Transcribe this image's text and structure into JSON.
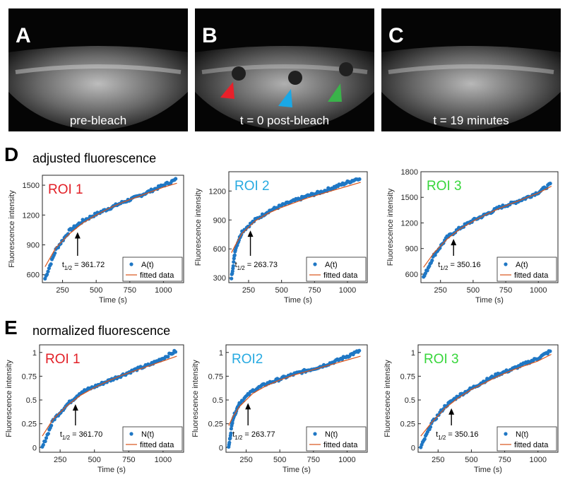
{
  "photo_panels": [
    {
      "letter": "A",
      "caption": "pre-bleach"
    },
    {
      "letter": "B",
      "caption": "t = 0 post-bleach"
    },
    {
      "letter": "C",
      "caption": "t = 19 minutes"
    }
  ],
  "sections": [
    {
      "letter": "D",
      "title": "adjusted fluorescence"
    },
    {
      "letter": "E",
      "title": "normalized fluorescence"
    }
  ],
  "arrowhead_colors": {
    "roi1": "#e8202a",
    "roi2": "#1aa8e6",
    "roi3": "#3ab34a"
  },
  "chart_data": [
    {
      "type": "scatter",
      "roi_label": "ROI 1",
      "roi_color": "#e21f26",
      "xlabel": "Time (s)",
      "ylabel": "Fluorescence intensity",
      "xlim": [
        100,
        1150
      ],
      "ylim": [
        520,
        1600
      ],
      "xticks": [
        250,
        500,
        750,
        1000
      ],
      "yticks": [
        600,
        900,
        1200,
        1500
      ],
      "legend": [
        "A(t)",
        "fitted data"
      ],
      "t_half_label": "361.72",
      "t_half": 361.72,
      "data_color": "#1f77c4",
      "fit_color": "#d95319",
      "series": [
        {
          "name": "A(t)",
          "x": [
            120,
            200,
            300,
            400,
            500,
            600,
            700,
            800,
            900,
            1000,
            1100
          ],
          "y": [
            560,
            850,
            1040,
            1140,
            1210,
            1270,
            1330,
            1380,
            1440,
            1500,
            1560
          ]
        },
        {
          "name": "fitted data",
          "x": [
            120,
            200,
            300,
            400,
            500,
            600,
            700,
            800,
            900,
            1000,
            1100
          ],
          "y": [
            680,
            870,
            1010,
            1120,
            1200,
            1270,
            1330,
            1380,
            1430,
            1480,
            1520
          ]
        }
      ]
    },
    {
      "type": "scatter",
      "roi_label": "ROI 2",
      "roi_color": "#27aae1",
      "xlabel": "Time (s)",
      "ylabel": "Fluorescence intensity",
      "xlim": [
        100,
        1150
      ],
      "ylim": [
        250,
        1400
      ],
      "xticks": [
        250,
        500,
        750,
        1000
      ],
      "yticks": [
        300,
        600,
        900,
        1200
      ],
      "legend": [
        "A(t)",
        "fitted data"
      ],
      "t_half_label": "263.73",
      "t_half": 263.73,
      "data_color": "#1f77c4",
      "fit_color": "#d95319",
      "series": [
        {
          "name": "A(t)",
          "x": [
            120,
            150,
            200,
            300,
            400,
            500,
            600,
            700,
            800,
            900,
            1000,
            1100
          ],
          "y": [
            300,
            600,
            780,
            900,
            990,
            1050,
            1100,
            1150,
            1190,
            1240,
            1290,
            1340
          ]
        },
        {
          "name": "fitted data",
          "x": [
            120,
            150,
            200,
            300,
            400,
            500,
            600,
            700,
            800,
            900,
            1000,
            1100
          ],
          "y": [
            560,
            640,
            760,
            890,
            970,
            1030,
            1080,
            1130,
            1170,
            1210,
            1250,
            1290
          ]
        }
      ]
    },
    {
      "type": "scatter",
      "roi_label": "ROI 3",
      "roi_color": "#37d63b",
      "xlabel": "Time (s)",
      "ylabel": "Fluorescence intensity",
      "xlim": [
        100,
        1150
      ],
      "ylim": [
        500,
        1800
      ],
      "xticks": [
        250,
        500,
        750,
        1000
      ],
      "yticks": [
        600,
        900,
        1200,
        1500,
        1800
      ],
      "legend": [
        "A(t)",
        "fitted data"
      ],
      "t_half_label": "350.16",
      "t_half": 350.16,
      "data_color": "#1f77c4",
      "fit_color": "#d95319",
      "series": [
        {
          "name": "A(t)",
          "x": [
            120,
            200,
            300,
            400,
            500,
            600,
            700,
            800,
            900,
            1000,
            1100
          ],
          "y": [
            560,
            820,
            1030,
            1140,
            1230,
            1300,
            1380,
            1430,
            1490,
            1560,
            1660
          ]
        },
        {
          "name": "fitted data",
          "x": [
            120,
            200,
            300,
            400,
            500,
            600,
            700,
            800,
            900,
            1000,
            1100
          ],
          "y": [
            680,
            850,
            1010,
            1130,
            1220,
            1300,
            1370,
            1430,
            1490,
            1550,
            1630
          ]
        }
      ]
    },
    {
      "type": "scatter",
      "roi_label": "ROI 1",
      "roi_color": "#e21f26",
      "xlabel": "Time (s)",
      "ylabel": "Fluorescence intensity",
      "xlim": [
        100,
        1150
      ],
      "ylim": [
        -0.05,
        1.08
      ],
      "xticks": [
        250,
        500,
        750,
        1000
      ],
      "yticks": [
        0,
        0.25,
        0.5,
        0.75,
        1
      ],
      "legend": [
        "N(t)",
        "fitted data"
      ],
      "t_half_label": "361.70",
      "t_half": 361.7,
      "data_color": "#1f77c4",
      "fit_color": "#d95319",
      "series": [
        {
          "name": "N(t)",
          "x": [
            120,
            200,
            300,
            400,
            500,
            600,
            700,
            800,
            900,
            1000,
            1100
          ],
          "y": [
            0.0,
            0.29,
            0.45,
            0.58,
            0.64,
            0.7,
            0.76,
            0.82,
            0.87,
            0.94,
            1.02
          ]
        },
        {
          "name": "fitted data",
          "x": [
            120,
            200,
            300,
            400,
            500,
            600,
            700,
            800,
            900,
            1000,
            1100
          ],
          "y": [
            0.12,
            0.3,
            0.44,
            0.55,
            0.63,
            0.7,
            0.76,
            0.81,
            0.86,
            0.91,
            0.96
          ]
        }
      ]
    },
    {
      "type": "scatter",
      "roi_label": "ROI2",
      "roi_color": "#27aae1",
      "xlabel": "Time (s)",
      "ylabel": "Fluorescence intensity",
      "xlim": [
        100,
        1150
      ],
      "ylim": [
        -0.05,
        1.08
      ],
      "xticks": [
        250,
        500,
        750,
        1000
      ],
      "yticks": [
        0,
        0.25,
        0.5,
        0.75,
        1
      ],
      "legend": [
        "N(t)",
        "fitted data"
      ],
      "t_half_label": "263.77",
      "t_half": 263.77,
      "data_color": "#1f77c4",
      "fit_color": "#d95319",
      "series": [
        {
          "name": "N(t)",
          "x": [
            120,
            150,
            200,
            300,
            400,
            500,
            600,
            700,
            800,
            900,
            1000,
            1100
          ],
          "y": [
            0.0,
            0.3,
            0.47,
            0.6,
            0.67,
            0.72,
            0.77,
            0.81,
            0.85,
            0.9,
            0.96,
            1.02
          ]
        },
        {
          "name": "fitted data",
          "x": [
            120,
            150,
            200,
            300,
            400,
            500,
            600,
            700,
            800,
            900,
            1000,
            1100
          ],
          "y": [
            0.23,
            0.32,
            0.43,
            0.57,
            0.65,
            0.71,
            0.76,
            0.8,
            0.84,
            0.88,
            0.92,
            0.96
          ]
        }
      ]
    },
    {
      "type": "scatter",
      "roi_label": "ROI 3",
      "roi_color": "#37d63b",
      "xlabel": "Time (s)",
      "ylabel": "Fluorescence intensity",
      "xlim": [
        100,
        1150
      ],
      "ylim": [
        -0.05,
        1.08
      ],
      "xticks": [
        250,
        500,
        750,
        1000
      ],
      "yticks": [
        0,
        0.25,
        0.5,
        0.75,
        1
      ],
      "legend": [
        "N(t)",
        "fitted data"
      ],
      "t_half_label": "350.16",
      "t_half": 350.16,
      "data_color": "#1f77c4",
      "fit_color": "#d95319",
      "series": [
        {
          "name": "N(t)",
          "x": [
            120,
            200,
            300,
            400,
            500,
            600,
            700,
            800,
            900,
            1000,
            1100
          ],
          "y": [
            0.0,
            0.25,
            0.43,
            0.54,
            0.62,
            0.7,
            0.77,
            0.82,
            0.88,
            0.94,
            1.02
          ]
        },
        {
          "name": "fitted data",
          "x": [
            120,
            200,
            300,
            400,
            500,
            600,
            700,
            800,
            900,
            1000,
            1100
          ],
          "y": [
            0.12,
            0.26,
            0.41,
            0.52,
            0.61,
            0.68,
            0.75,
            0.81,
            0.86,
            0.91,
            0.98
          ]
        }
      ]
    }
  ]
}
